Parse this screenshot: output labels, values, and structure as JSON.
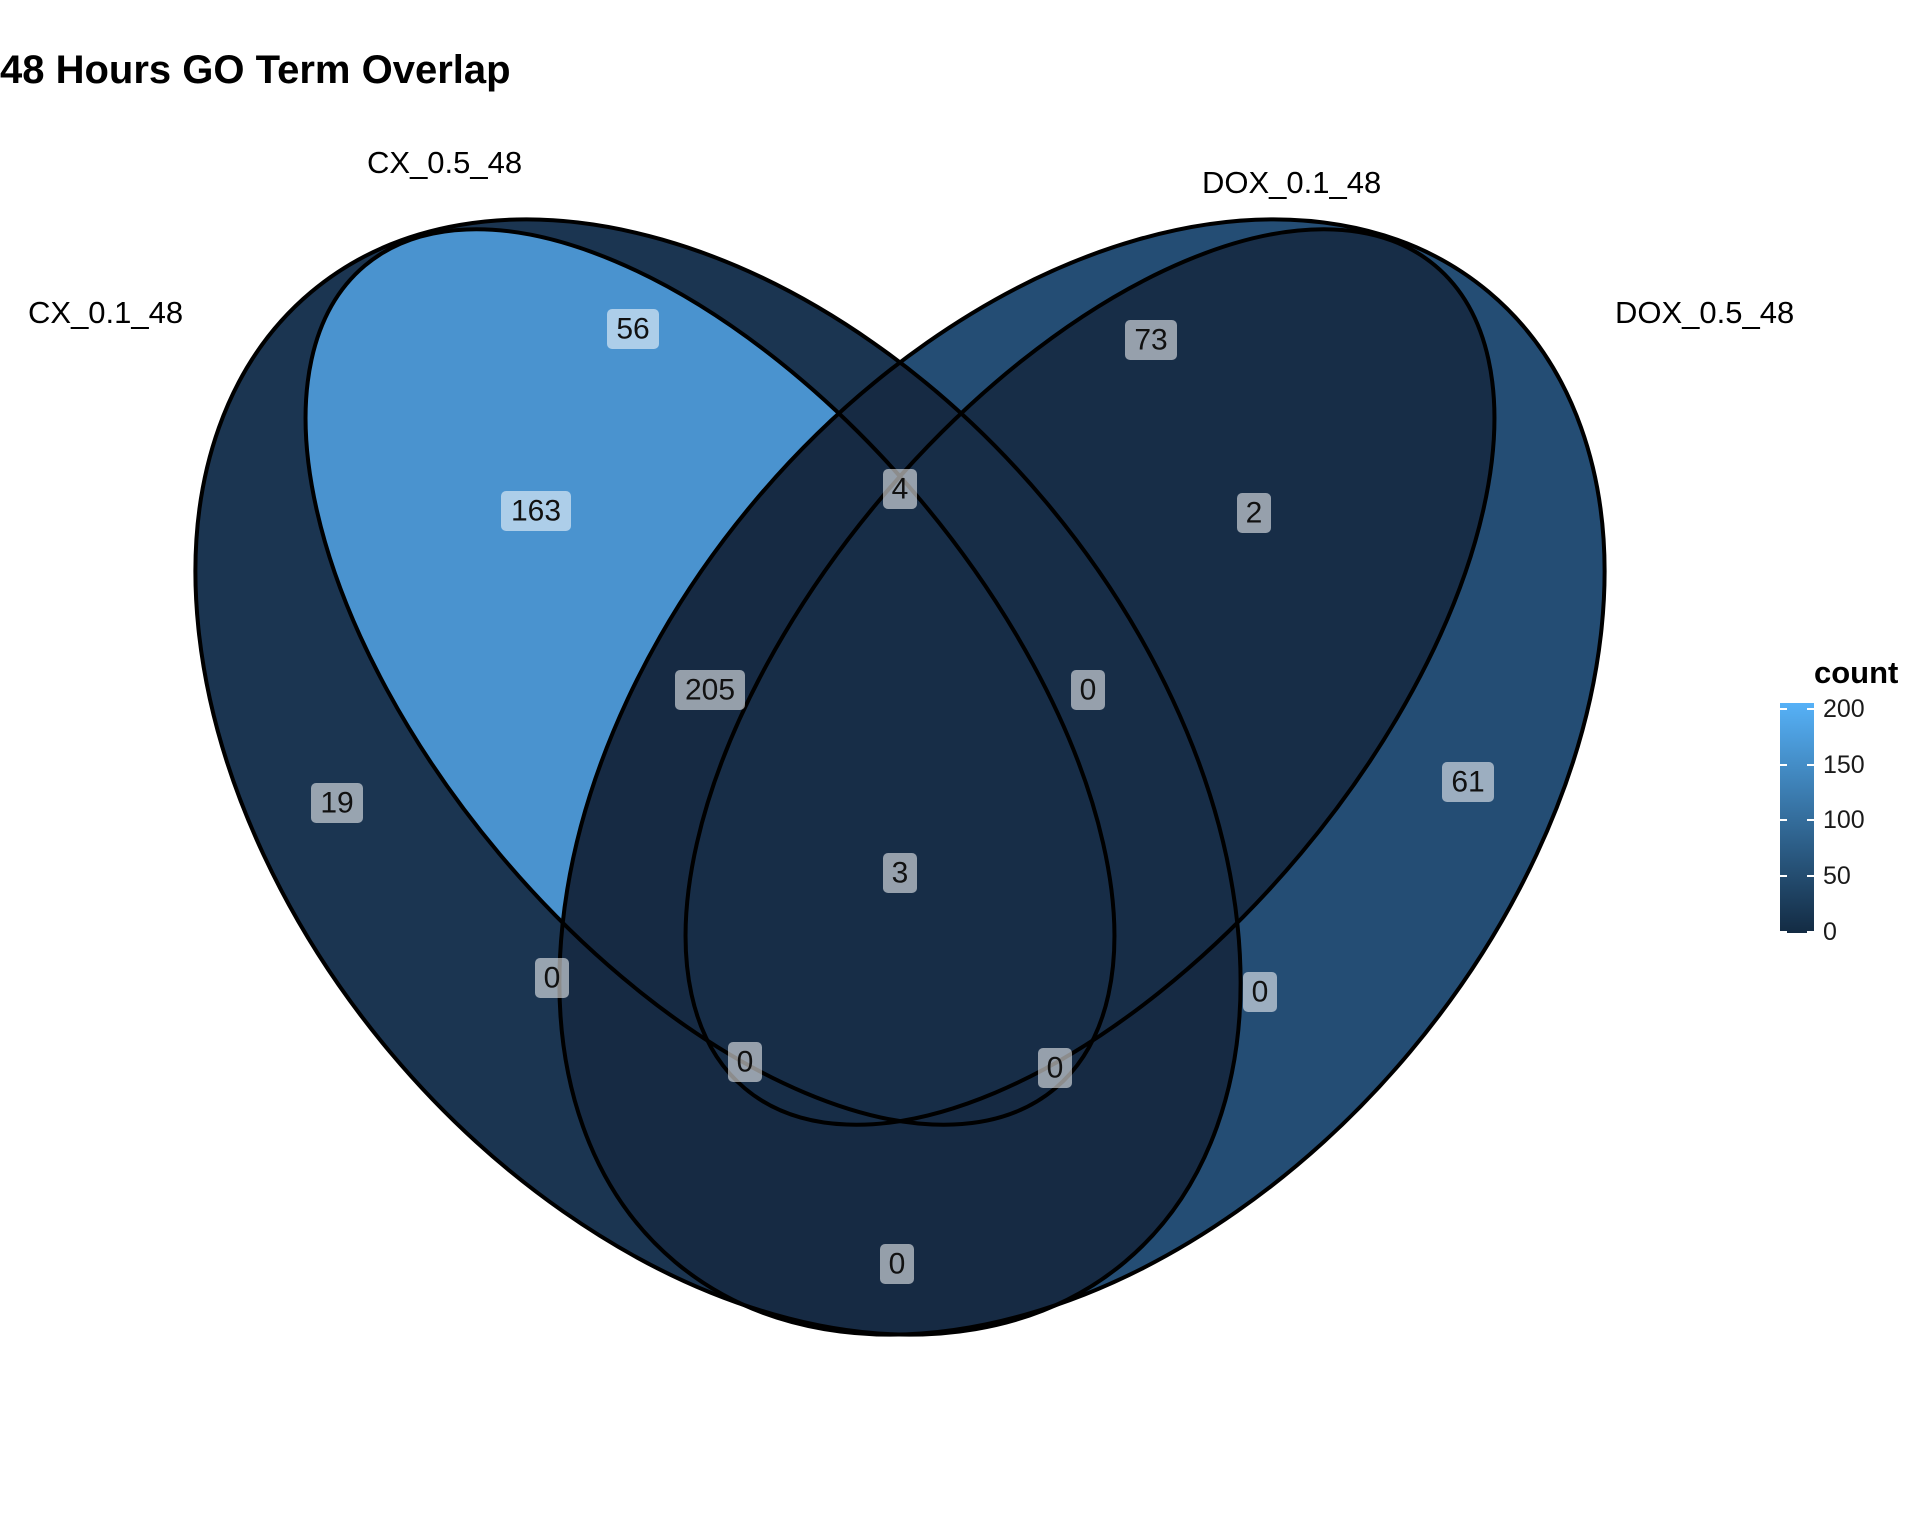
{
  "title": "48 Hours GO Term Overlap",
  "sets": [
    {
      "name": "CX_0.1_48"
    },
    {
      "name": "CX_0.5_48"
    },
    {
      "name": "DOX_0.1_48"
    },
    {
      "name": "DOX_0.5_48"
    }
  ],
  "regions": [
    {
      "sets": [
        "CX_0.1_48"
      ],
      "count": "19"
    },
    {
      "sets": [
        "CX_0.5_48"
      ],
      "count": "56"
    },
    {
      "sets": [
        "DOX_0.1_48"
      ],
      "count": "73"
    },
    {
      "sets": [
        "DOX_0.5_48"
      ],
      "count": "61"
    },
    {
      "sets": [
        "CX_0.1_48",
        "CX_0.5_48"
      ],
      "count": "163"
    },
    {
      "sets": [
        "CX_0.5_48",
        "DOX_0.1_48"
      ],
      "count": "4"
    },
    {
      "sets": [
        "DOX_0.1_48",
        "DOX_0.5_48"
      ],
      "count": "2"
    },
    {
      "sets": [
        "CX_0.1_48",
        "CX_0.5_48",
        "DOX_0.1_48"
      ],
      "count": "205"
    },
    {
      "sets": [
        "CX_0.5_48",
        "DOX_0.1_48",
        "DOX_0.5_48"
      ],
      "count": "0"
    },
    {
      "sets": [
        "CX_0.1_48",
        "DOX_0.1_48"
      ],
      "count": "0"
    },
    {
      "sets": [
        "CX_0.1_48",
        "CX_0.5_48",
        "DOX_0.1_48",
        "DOX_0.5_48"
      ],
      "count": "3"
    },
    {
      "sets": [
        "CX_0.5_48",
        "DOX_0.5_48"
      ],
      "count": "0"
    },
    {
      "sets": [
        "CX_0.1_48",
        "DOX_0.1_48",
        "DOX_0.5_48"
      ],
      "count": "0"
    },
    {
      "sets": [
        "CX_0.1_48",
        "CX_0.5_48",
        "DOX_0.5_48"
      ],
      "count": "0"
    },
    {
      "sets": [
        "CX_0.1_48",
        "DOX_0.5_48"
      ],
      "count": "0"
    }
  ],
  "legend": {
    "title": "count",
    "ticks": [
      "200",
      "150",
      "100",
      "50",
      "0"
    ],
    "color_low": "#132B43",
    "color_high": "#56B1F7"
  }
}
